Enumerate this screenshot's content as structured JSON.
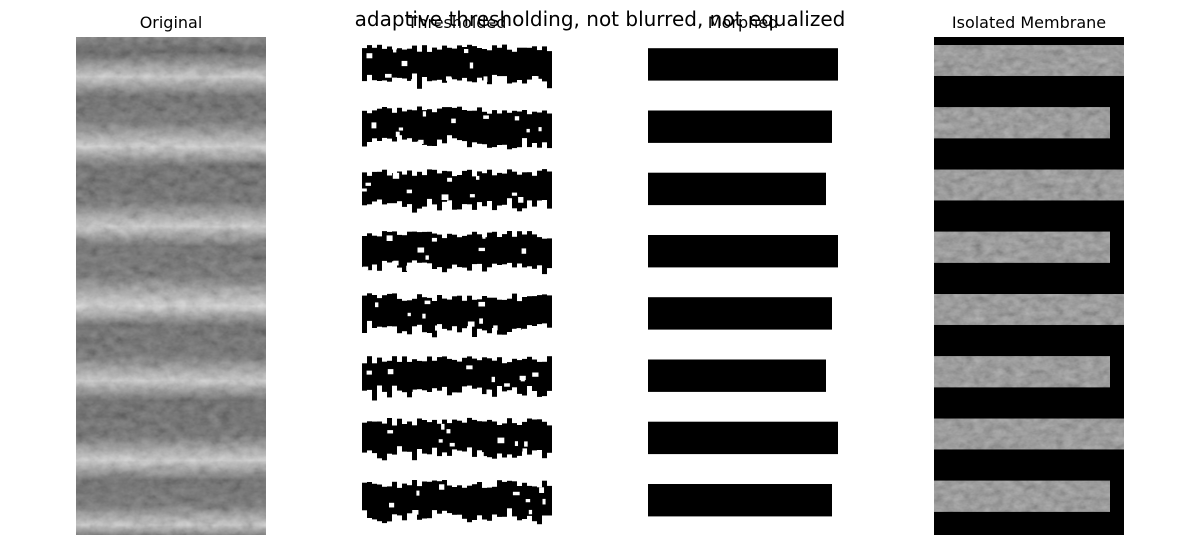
{
  "figure": {
    "suptitle": "adaptive thresholding, not blurred, not equalized",
    "panels": [
      {
        "title": "Original",
        "kind": "grayscale"
      },
      {
        "title": "Thresholded",
        "kind": "binary-noisy"
      },
      {
        "title": "Morphed",
        "kind": "binary-clean"
      },
      {
        "title": "Isolated Membrane",
        "kind": "masked"
      }
    ],
    "stripe_count": 8
  }
}
